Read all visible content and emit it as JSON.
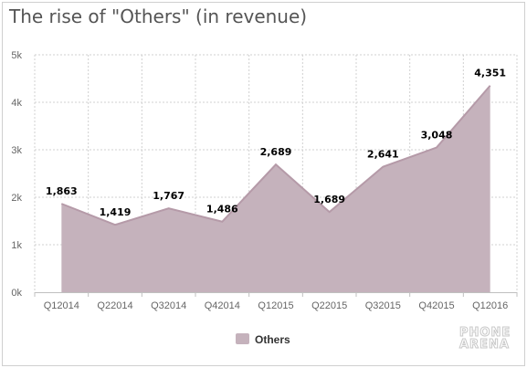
{
  "title": "The rise of \"Others\" (in revenue)",
  "watermark": [
    "PHONE",
    "ARENA"
  ],
  "colors": {
    "area_fill": "#c5b2bc",
    "area_line": "#b59aa8",
    "grid": "#d0d0d0",
    "axis_text": "#666666",
    "label_text": "#000000"
  },
  "chart_data": {
    "type": "area",
    "title": "The rise of \"Others\" (in revenue)",
    "categories": [
      "Q12014",
      "Q22014",
      "Q32014",
      "Q42014",
      "Q12015",
      "Q22015",
      "Q32015",
      "Q42015",
      "Q12016"
    ],
    "series": [
      {
        "name": "Others",
        "values": [
          1863,
          1419,
          1767,
          1486,
          2689,
          1689,
          2641,
          3048,
          4351
        ]
      }
    ],
    "data_labels": [
      "1,863",
      "1,419",
      "1,767",
      "1,486",
      "2,689",
      "1,689",
      "2,641",
      "3,048",
      "4,351"
    ],
    "ylim": [
      0,
      5000
    ],
    "yticks": [
      0,
      1000,
      2000,
      3000,
      4000,
      5000
    ],
    "ytick_labels": [
      "0k",
      "1k",
      "2k",
      "3k",
      "4k",
      "5k"
    ],
    "grid": true,
    "legend": {
      "position": "bottom-center",
      "label": "Others"
    }
  }
}
